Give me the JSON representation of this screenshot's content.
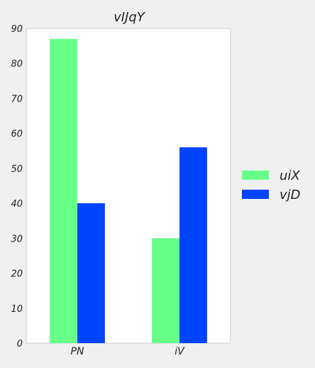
{
  "chart_data": {
    "type": "bar",
    "title": "vIJqY",
    "xlabel": "",
    "ylabel": "",
    "categories": [
      "PN",
      "iV"
    ],
    "series": [
      {
        "name": "uiX",
        "values": [
          87,
          30
        ],
        "color": "#66ff88"
      },
      {
        "name": "vjD",
        "values": [
          40,
          56
        ],
        "color": "#0044ff"
      }
    ],
    "ylim": [
      0,
      90
    ],
    "yticks": [
      0,
      10,
      20,
      30,
      40,
      50,
      60,
      70,
      80,
      90
    ],
    "grid": false,
    "legend_position": "right"
  },
  "colors": {
    "background": "#f0f0f0",
    "plot_area": "#ffffff",
    "axis": "#cccccc"
  }
}
